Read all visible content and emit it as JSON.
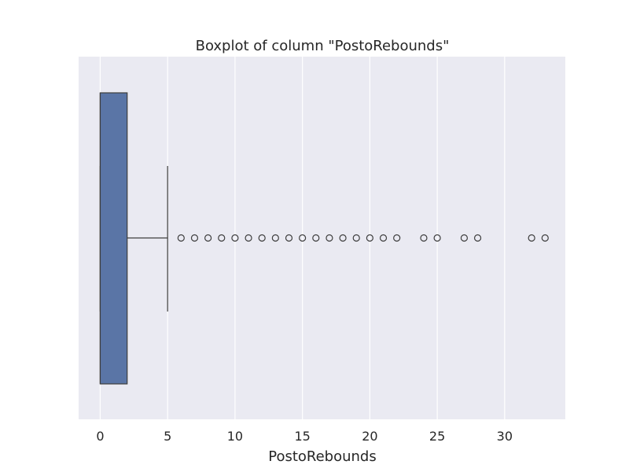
{
  "chart_data": {
    "type": "boxplot",
    "title": "Boxplot of column \"PostoRebounds\"",
    "xlabel": "PostoRebounds",
    "ylabel": "",
    "orientation": "horizontal",
    "xlim": [
      -1.6,
      34.5
    ],
    "xticks": [
      0,
      5,
      10,
      15,
      20,
      25,
      30
    ],
    "grid": true,
    "box": {
      "min": 0,
      "q1": 0,
      "median": 0,
      "q3": 2,
      "whisker_low": 0,
      "whisker_high": 5,
      "color": "#5a75a6"
    },
    "outliers": [
      6,
      7,
      8,
      9,
      10,
      11,
      12,
      13,
      14,
      15,
      16,
      17,
      18,
      19,
      20,
      21,
      22,
      24,
      25,
      27,
      28,
      32,
      33
    ]
  },
  "colors": {
    "plot_background": "#eaeaf2",
    "grid": "#ffffff",
    "box_fill": "#5a75a6",
    "line": "#3d3d3d",
    "text": "#262626"
  }
}
